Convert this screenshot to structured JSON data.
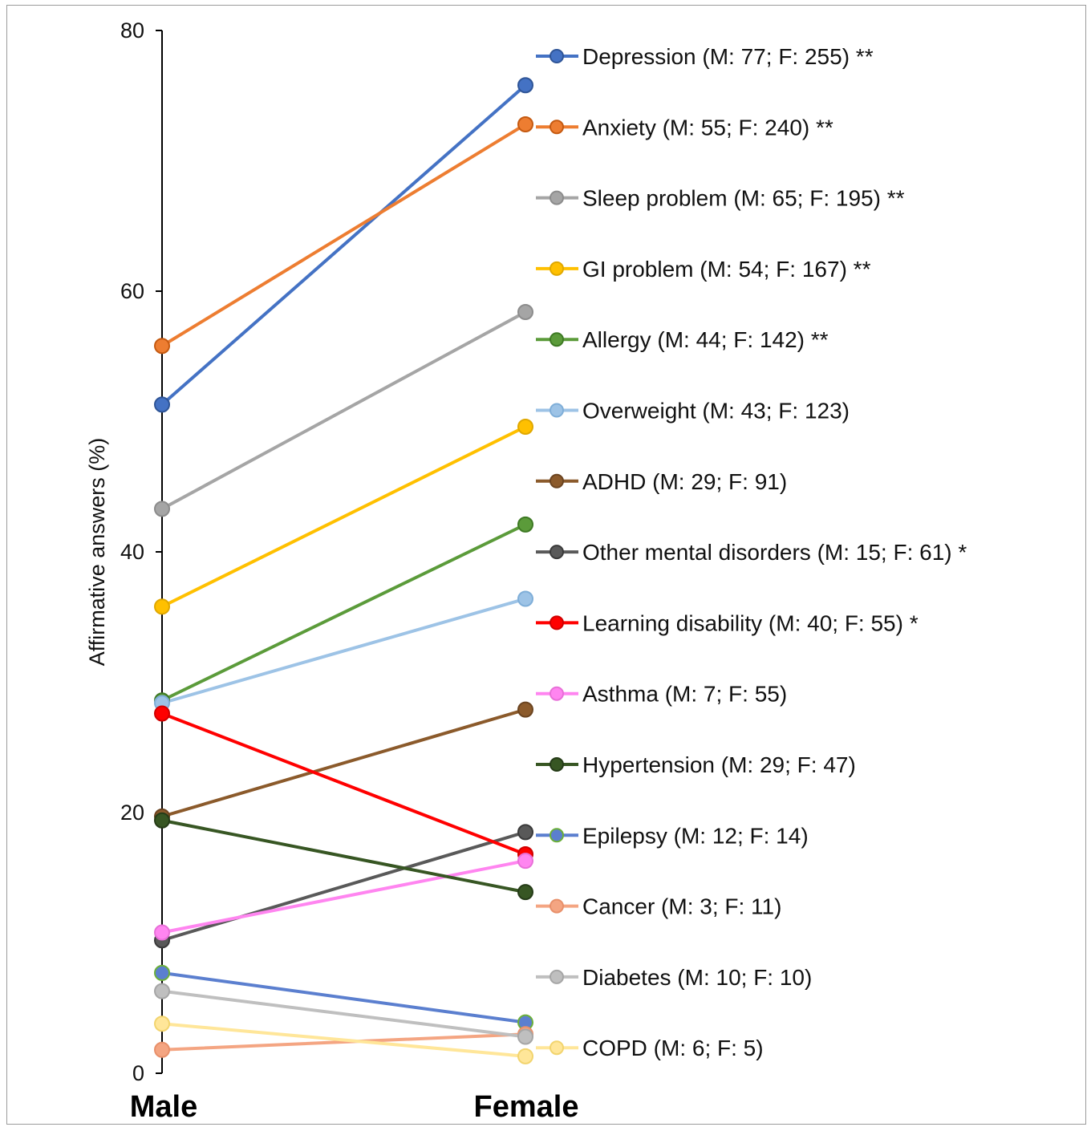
{
  "chart_data": {
    "type": "line",
    "title": "",
    "xlabel": "",
    "ylabel": "Affirmative answers (%)",
    "categories": [
      "Male",
      "Female"
    ],
    "ylim": [
      0,
      80
    ],
    "yticks": [
      "0",
      "20",
      "40",
      "60",
      "80"
    ],
    "legend_position": "right",
    "series": [
      {
        "name": "Depression (M: 77; F: 255) **",
        "values": [
          51.3,
          75.8
        ],
        "color": "#4472C4",
        "edge": "#2F5597"
      },
      {
        "name": "Anxiety (M: 55; F: 240) **",
        "values": [
          55.8,
          72.8
        ],
        "color": "#ED7D31",
        "edge": "#C55A11"
      },
      {
        "name": "Sleep problem (M: 65; F: 195) **",
        "values": [
          43.3,
          58.4
        ],
        "color": "#A5A5A5",
        "edge": "#8C8C8C"
      },
      {
        "name": "GI problem (M: 54; F: 167) **",
        "values": [
          35.8,
          49.6
        ],
        "color": "#FFC000",
        "edge": "#E0A800"
      },
      {
        "name": "Allergy (M: 44; F: 142) **",
        "values": [
          28.6,
          42.1
        ],
        "color": "#5B9B3A",
        "edge": "#3E7A24"
      },
      {
        "name": "Overweight (M: 43; F: 123)",
        "values": [
          28.4,
          36.4
        ],
        "color": "#9DC3E6",
        "edge": "#7FAED8"
      },
      {
        "name": "ADHD (M: 29; F: 91)",
        "values": [
          19.7,
          27.9
        ],
        "color": "#8B5A2B",
        "edge": "#6B4420"
      },
      {
        "name": "Other mental disorders (M: 15; F: 61) *",
        "values": [
          10.2,
          18.5
        ],
        "color": "#595959",
        "edge": "#3A3A3A"
      },
      {
        "name": "Learning disability (M: 40; F: 55) *",
        "values": [
          27.6,
          16.8
        ],
        "color": "#FF0000",
        "edge": "#D00000"
      },
      {
        "name": "Asthma (M: 7; F: 55)",
        "values": [
          10.8,
          16.3
        ],
        "color": "#FF85F0",
        "edge": "#E870D8"
      },
      {
        "name": "Hypertension (M: 29; F: 47)",
        "values": [
          19.4,
          13.9
        ],
        "color": "#375623",
        "edge": "#253B17"
      },
      {
        "name": "Epilepsy (M: 12; F: 14)",
        "values": [
          7.7,
          3.9
        ],
        "color": "#5B7FCF",
        "edge": "#6BAF3A"
      },
      {
        "name": "Cancer (M: 3; F: 11)",
        "values": [
          1.8,
          3.0
        ],
        "color": "#F4A582",
        "edge": "#E8906A"
      },
      {
        "name": "Diabetes (M: 10; F: 10)",
        "values": [
          6.3,
          2.8
        ],
        "color": "#BFBFBF",
        "edge": "#A6A6A6"
      },
      {
        "name": "COPD (M: 6; F: 5)",
        "values": [
          3.8,
          1.3
        ],
        "color": "#FFE699",
        "edge": "#F2D46E"
      }
    ]
  }
}
